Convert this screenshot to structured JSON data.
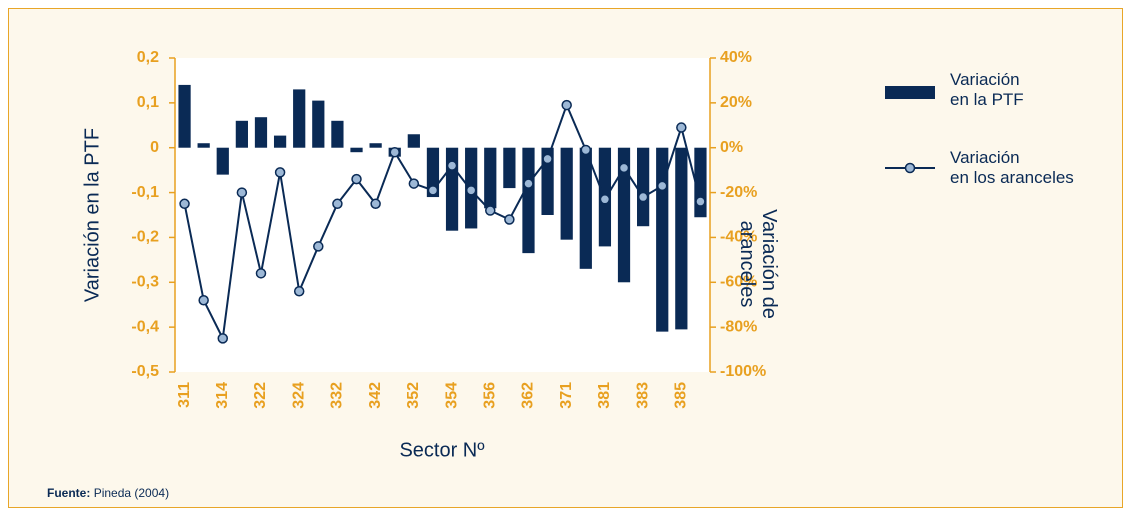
{
  "chart_data": {
    "type": "bar_line",
    "x_label": "Sector Nº",
    "y_label": "Variación en la PTF",
    "y2_label": "Variación de\naranceles",
    "categories": [
      "311",
      null,
      "314",
      null,
      "322",
      null,
      "324",
      null,
      "332",
      null,
      "342",
      null,
      "352",
      null,
      "354",
      null,
      "356",
      null,
      "362",
      null,
      "371",
      null,
      "381",
      null,
      "383",
      null,
      "385",
      null
    ],
    "series": [
      {
        "name": "Variación\nen la PTF",
        "color": "#0a2a55",
        "type": "bar",
        "values": [
          0.14,
          0.01,
          -0.06,
          0.06,
          0.068,
          0.027,
          0.13,
          0.105,
          0.06,
          -0.01,
          0.01,
          -0.02,
          0.03,
          -0.11,
          -0.185,
          -0.18,
          -0.135,
          -0.09,
          -0.235,
          -0.15,
          -0.205,
          -0.27,
          -0.22,
          -0.3,
          -0.175,
          -0.41,
          -0.405,
          -0.155
        ]
      },
      {
        "name": "Variación\nen los aranceles",
        "color": "#0a2a55",
        "marker_color": "#9db8d6",
        "type": "line",
        "axis": "y2",
        "values": [
          -25,
          -68,
          -85,
          -20,
          -56,
          -11,
          -64,
          -44,
          -25,
          -14,
          -25,
          -2,
          -16,
          -19,
          -8,
          -19,
          -28,
          -32,
          -16,
          -5,
          19,
          -1,
          -23,
          -9,
          -22,
          -17,
          9,
          -24
        ]
      }
    ],
    "ylim": [
      -0.5,
      0.2
    ],
    "yticks": [
      {
        "value": -0.5,
        "label": "-0,5"
      },
      {
        "value": -0.4,
        "label": "-0,4"
      },
      {
        "value": -0.3,
        "label": "-0,3"
      },
      {
        "value": -0.2,
        "label": "-0,2"
      },
      {
        "value": -0.1,
        "label": "-0,1"
      },
      0,
      {
        "value": 0.1,
        "label": "0,1"
      },
      {
        "value": 0.2,
        "label": "0,2"
      }
    ],
    "y2lim": [
      -100,
      40
    ],
    "y2ticks": [
      {
        "value": -100,
        "label": "-100%"
      },
      {
        "value": -80,
        "label": "-80%"
      },
      {
        "value": -60,
        "label": "-60%"
      },
      {
        "value": -40,
        "label": "-40%"
      },
      {
        "value": -20,
        "label": "-20%"
      },
      {
        "value": 0,
        "label": "0%"
      },
      {
        "value": 20,
        "label": "20%"
      },
      {
        "value": 40,
        "label": "40%"
      }
    ],
    "source_label": "Fuente:",
    "source": "Pineda (2004)"
  }
}
